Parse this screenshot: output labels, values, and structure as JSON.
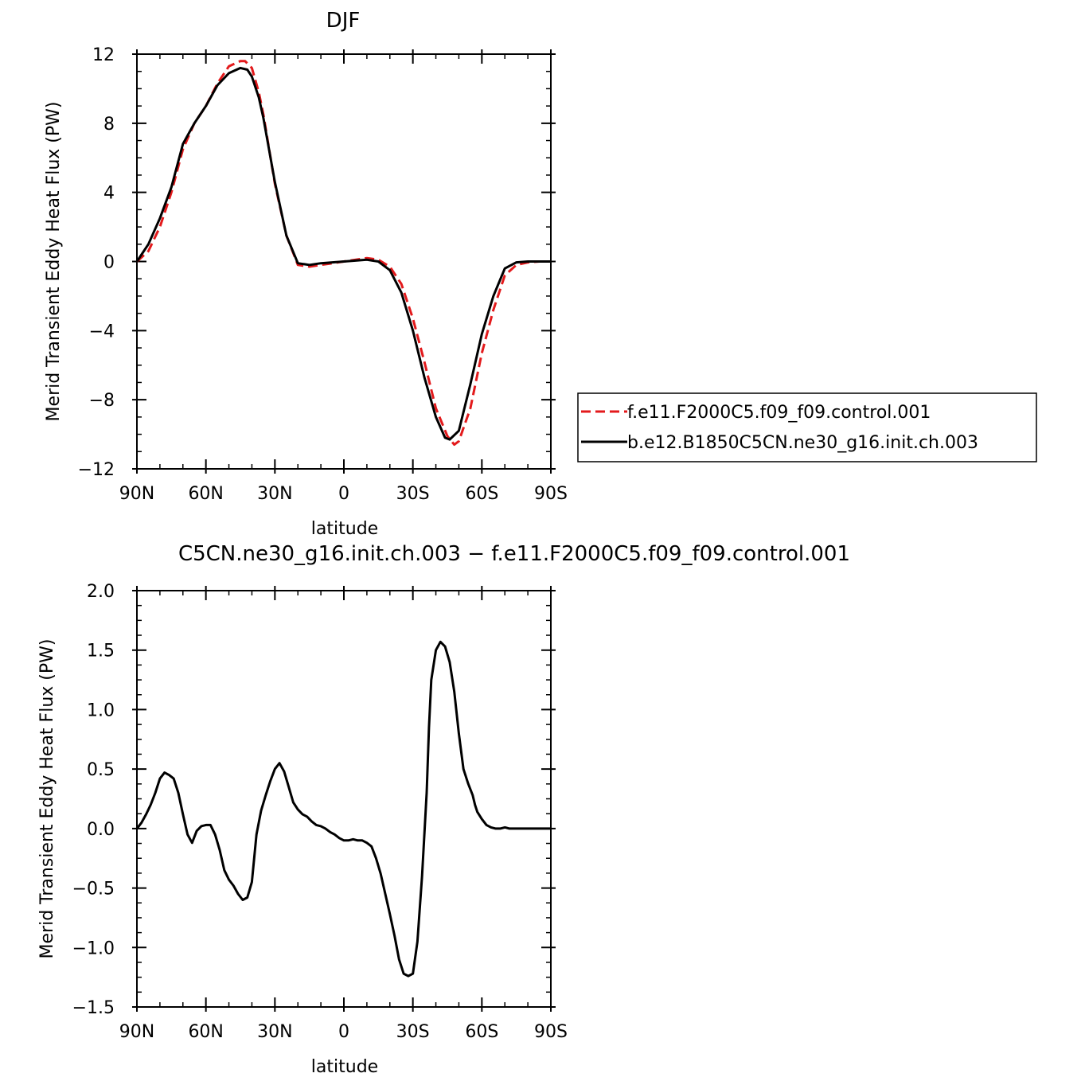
{
  "figure_title": "DJF",
  "diff_title": "b.e12.B1850C5CN.ne30_g16.init.ch.003 - f.e11.F2000C5.f09_f09.control.001",
  "colors": {
    "model": "#e31a1c",
    "control": "#000000",
    "axes": "#000000"
  },
  "chart_data": [
    {
      "type": "line",
      "title": "DJF",
      "xlabel": "latitude",
      "ylabel": "Merid Transient Eddy Heat Flux (PW)",
      "xlim": [
        90,
        -90
      ],
      "ylim": [
        -12,
        12
      ],
      "xticks": [
        90,
        60,
        30,
        0,
        -30,
        -60,
        -90
      ],
      "xtick_labels": [
        "90N",
        "60N",
        "30N",
        "0",
        "30S",
        "60S",
        "90S"
      ],
      "yticks": [
        -12,
        -8,
        -4,
        0,
        4,
        8,
        12
      ],
      "ytick_labels": [
        "−12",
        "−8",
        "−4",
        "0",
        "4",
        "8",
        "12"
      ],
      "legend_position": "right",
      "series": [
        {
          "name": "f.e11.F2000C5.f09_f09.control.001",
          "style": "dashed",
          "color": "#e31a1c",
          "x": [
            90,
            85,
            80,
            75,
            70,
            65,
            60,
            55,
            50,
            45,
            43,
            40,
            37,
            35,
            30,
            25,
            20,
            15,
            10,
            5,
            0,
            -5,
            -10,
            -15,
            -20,
            -25,
            -30,
            -35,
            -40,
            -45,
            -48,
            -50,
            -55,
            -60,
            -65,
            -70,
            -75,
            -80,
            -85,
            -90
          ],
          "y": [
            0,
            0.6,
            2.0,
            4.0,
            6.5,
            8.0,
            9.0,
            10.3,
            11.3,
            11.6,
            11.6,
            11.2,
            9.8,
            8.5,
            4.5,
            1.5,
            -0.2,
            -0.3,
            -0.2,
            -0.1,
            0.0,
            0.1,
            0.2,
            0.1,
            -0.3,
            -1.3,
            -3.3,
            -5.8,
            -8.5,
            -10.1,
            -10.6,
            -10.4,
            -8.5,
            -5.3,
            -2.8,
            -0.8,
            -0.2,
            -0.05,
            0,
            0
          ]
        },
        {
          "name": "b.e12.B1850C5CN.ne30_g16.init.ch.003",
          "style": "solid",
          "color": "#000000",
          "x": [
            90,
            85,
            80,
            75,
            70,
            65,
            60,
            55,
            50,
            45,
            42,
            40,
            37,
            35,
            30,
            25,
            20,
            15,
            10,
            5,
            0,
            -5,
            -10,
            -15,
            -20,
            -25,
            -30,
            -35,
            -40,
            -44,
            -46,
            -50,
            -55,
            -60,
            -65,
            -70,
            -75,
            -80,
            -85,
            -90
          ],
          "y": [
            0,
            1.0,
            2.5,
            4.3,
            6.8,
            8.0,
            9.0,
            10.2,
            10.9,
            11.2,
            11.1,
            10.7,
            9.5,
            8.3,
            4.6,
            1.5,
            -0.1,
            -0.2,
            -0.1,
            -0.05,
            0.0,
            0.05,
            0.1,
            0.0,
            -0.5,
            -1.8,
            -4.0,
            -6.7,
            -9.0,
            -10.2,
            -10.3,
            -9.8,
            -7.1,
            -4.2,
            -2.0,
            -0.4,
            -0.05,
            0,
            0,
            0
          ]
        }
      ]
    },
    {
      "type": "line",
      "title": "C5CN.ne30_g16.init.ch.003 − f.e11.F2000C5.f09_f09.control.001",
      "xlabel": "latitude",
      "ylabel": "Merid Transient Eddy Heat Flux (PW)",
      "xlim": [
        90,
        -90
      ],
      "ylim": [
        -1.5,
        2.0
      ],
      "xticks": [
        90,
        60,
        30,
        0,
        -30,
        -60,
        -90
      ],
      "xtick_labels": [
        "90N",
        "60N",
        "30N",
        "0",
        "30S",
        "60S",
        "90S"
      ],
      "yticks": [
        -1.5,
        -1.0,
        -0.5,
        0.0,
        0.5,
        1.0,
        1.5,
        2.0
      ],
      "ytick_labels": [
        "−1.5",
        "−1.0",
        "−0.5",
        "0.0",
        "0.5",
        "1.0",
        "1.5",
        "2.0"
      ],
      "series": [
        {
          "style": "solid",
          "color": "#000000",
          "x": [
            90,
            88,
            86,
            84,
            82,
            80,
            78,
            76,
            74,
            72,
            70,
            68,
            66,
            64,
            62,
            60,
            58,
            56,
            54,
            52,
            50,
            48,
            46,
            44,
            42,
            40,
            38,
            36,
            34,
            32,
            30,
            28,
            26,
            24,
            22,
            20,
            18,
            16,
            14,
            12,
            10,
            8,
            6,
            4,
            2,
            0,
            -2,
            -4,
            -6,
            -8,
            -10,
            -12,
            -14,
            -16,
            -18,
            -20,
            -22,
            -24,
            -26,
            -28,
            -30,
            -32,
            -34,
            -36,
            -37,
            -38,
            -40,
            -42,
            -44,
            -46,
            -48,
            -50,
            -52,
            -54,
            -56,
            -57,
            -58,
            -60,
            -62,
            -64,
            -66,
            -68,
            -70,
            -72,
            -74,
            -76,
            -78,
            -80,
            -82,
            -84,
            -86,
            -88,
            -90
          ],
          "y": [
            0.0,
            0.05,
            0.12,
            0.2,
            0.3,
            0.42,
            0.47,
            0.45,
            0.42,
            0.3,
            0.12,
            -0.05,
            -0.12,
            -0.02,
            0.02,
            0.03,
            0.03,
            -0.05,
            -0.18,
            -0.35,
            -0.43,
            -0.48,
            -0.55,
            -0.6,
            -0.58,
            -0.45,
            -0.05,
            0.15,
            0.28,
            0.4,
            0.5,
            0.55,
            0.48,
            0.35,
            0.22,
            0.16,
            0.12,
            0.1,
            0.06,
            0.03,
            0.02,
            0.0,
            -0.03,
            -0.05,
            -0.08,
            -0.1,
            -0.1,
            -0.09,
            -0.1,
            -0.1,
            -0.12,
            -0.15,
            -0.25,
            -0.38,
            -0.55,
            -0.72,
            -0.9,
            -1.1,
            -1.22,
            -1.24,
            -1.22,
            -0.95,
            -0.4,
            0.3,
            0.85,
            1.25,
            1.5,
            1.57,
            1.53,
            1.4,
            1.15,
            0.8,
            0.5,
            0.38,
            0.28,
            0.2,
            0.14,
            0.08,
            0.03,
            0.01,
            0.0,
            0.0,
            0.01,
            0.0,
            0.0,
            0.0,
            0.0,
            0.0,
            0.0,
            0.0,
            0.0,
            0.0,
            0.0
          ]
        }
      ]
    }
  ]
}
